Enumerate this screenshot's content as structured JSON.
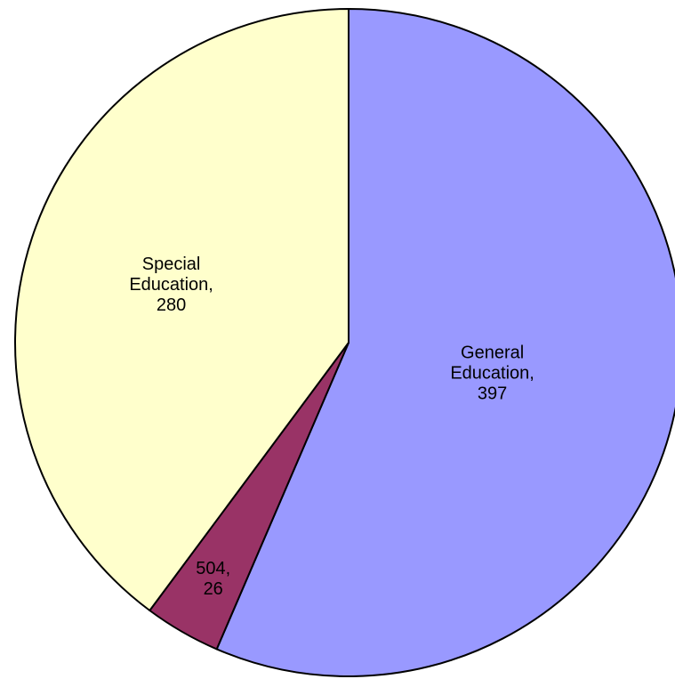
{
  "chart_data": {
    "type": "pie",
    "title": "",
    "slices": [
      {
        "category": "General Education",
        "value": 397,
        "label_lines": [
          "General",
          "Education,",
          "397"
        ],
        "color": "#9999ff"
      },
      {
        "category": "504",
        "value": 26,
        "label_lines": [
          "504,",
          "26"
        ],
        "color": "#993366"
      },
      {
        "category": "Special Education",
        "value": 280,
        "label_lines": [
          "Special",
          "Education,",
          "280"
        ],
        "color": "#ffffcc"
      }
    ],
    "legend": "none",
    "start_angle_deg": 0,
    "direction": "clockwise"
  }
}
